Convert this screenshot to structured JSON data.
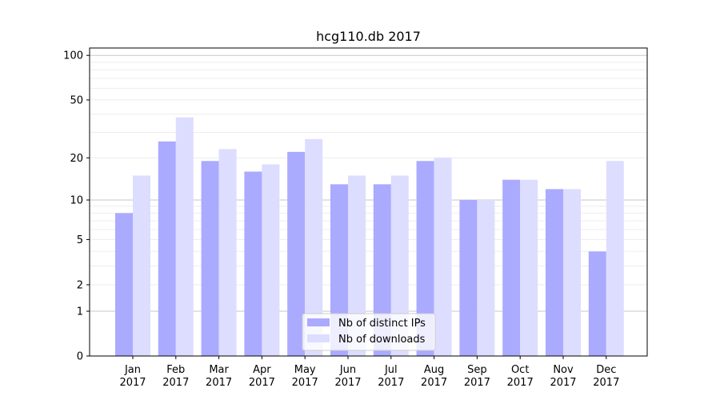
{
  "chart_data": {
    "type": "bar",
    "title": "hcg110.db 2017",
    "xlabel": "",
    "ylabel": "",
    "categories": [
      [
        "Jan",
        "2017"
      ],
      [
        "Feb",
        "2017"
      ],
      [
        "Mar",
        "2017"
      ],
      [
        "Apr",
        "2017"
      ],
      [
        "May",
        "2017"
      ],
      [
        "Jun",
        "2017"
      ],
      [
        "Jul",
        "2017"
      ],
      [
        "Aug",
        "2017"
      ],
      [
        "Sep",
        "2017"
      ],
      [
        "Oct",
        "2017"
      ],
      [
        "Nov",
        "2017"
      ],
      [
        "Dec",
        "2017"
      ]
    ],
    "series": [
      {
        "name": "Nb of distinct IPs",
        "color": "#aaaaff",
        "values": [
          8,
          26,
          19,
          16,
          22,
          13,
          13,
          19,
          10,
          14,
          12,
          4
        ]
      },
      {
        "name": "Nb of downloads",
        "color": "#ddddff",
        "values": [
          15,
          38,
          23,
          18,
          27,
          15,
          15,
          20,
          10,
          14,
          12,
          19
        ]
      }
    ],
    "y_scale": "log(1+y)",
    "ylim": [
      0,
      120
    ],
    "yticks": [
      0,
      1,
      2,
      5,
      10,
      20,
      50,
      100
    ],
    "legend_position": "lower center",
    "grid": "horizontal"
  }
}
